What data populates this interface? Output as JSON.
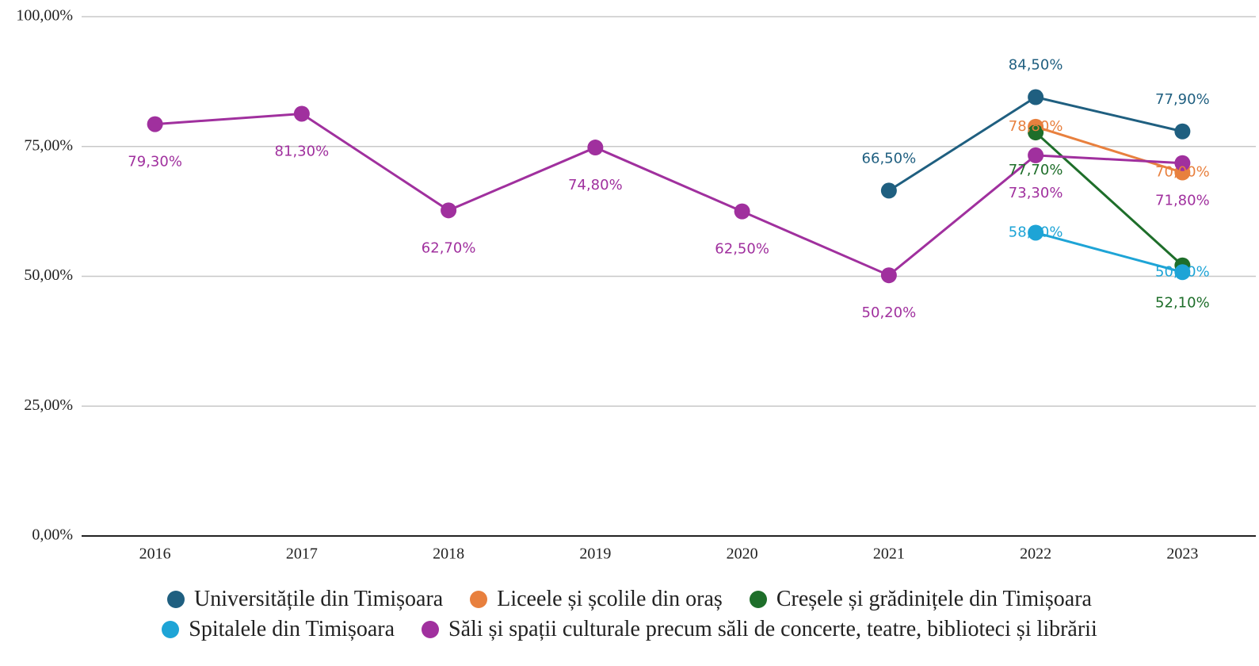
{
  "chart_data": {
    "type": "line",
    "categories": [
      "2016",
      "2017",
      "2018",
      "2019",
      "2020",
      "2021",
      "2022",
      "2023"
    ],
    "series": [
      {
        "name": "Universitățile din Timișoara",
        "color": "#1f5f80",
        "label_position": "above",
        "values": [
          null,
          null,
          null,
          null,
          null,
          66.5,
          84.5,
          77.9
        ],
        "value_labels": [
          null,
          null,
          null,
          null,
          null,
          "66,50%",
          "84,50%",
          "77,90%"
        ]
      },
      {
        "name": "Liceele și școlile din oraș",
        "color": "#e8803e",
        "label_position": "center",
        "values": [
          null,
          null,
          null,
          null,
          null,
          null,
          78.8,
          70.0
        ],
        "value_labels": [
          null,
          null,
          null,
          null,
          null,
          null,
          "78,80%",
          "70,00%"
        ]
      },
      {
        "name": "Creșele și grădinițele din Timișoara",
        "color": "#1e6e2a",
        "label_position": "below",
        "values": [
          null,
          null,
          null,
          null,
          null,
          null,
          77.7,
          52.1
        ],
        "value_labels": [
          null,
          null,
          null,
          null,
          null,
          null,
          "77,70%",
          "52,10%"
        ]
      },
      {
        "name": "Spitalele din Timișoara",
        "color": "#1ea4d6",
        "label_position": "center",
        "values": [
          null,
          null,
          null,
          null,
          null,
          null,
          58.4,
          50.8
        ],
        "value_labels": [
          null,
          null,
          null,
          null,
          null,
          null,
          "58,40%",
          "50,80%"
        ]
      },
      {
        "name": "Săli și spații culturale precum săli de concerte, teatre, biblioteci și librării",
        "color": "#a0309e",
        "label_position": "below",
        "values": [
          79.3,
          81.3,
          62.7,
          74.8,
          62.5,
          50.2,
          73.3,
          71.8
        ],
        "value_labels": [
          "79,30%",
          "81,30%",
          "62,70%",
          "74,80%",
          "62,50%",
          "50,20%",
          "73,30%",
          "71,80%"
        ]
      }
    ],
    "ylim": [
      0,
      100
    ],
    "yticks": [
      {
        "value": 0,
        "label": "0,00%"
      },
      {
        "value": 25,
        "label": "25,00%"
      },
      {
        "value": 50,
        "label": "50,00%"
      },
      {
        "value": 75,
        "label": "75,00%"
      },
      {
        "value": 100,
        "label": "100,00%"
      }
    ],
    "grid": true
  }
}
